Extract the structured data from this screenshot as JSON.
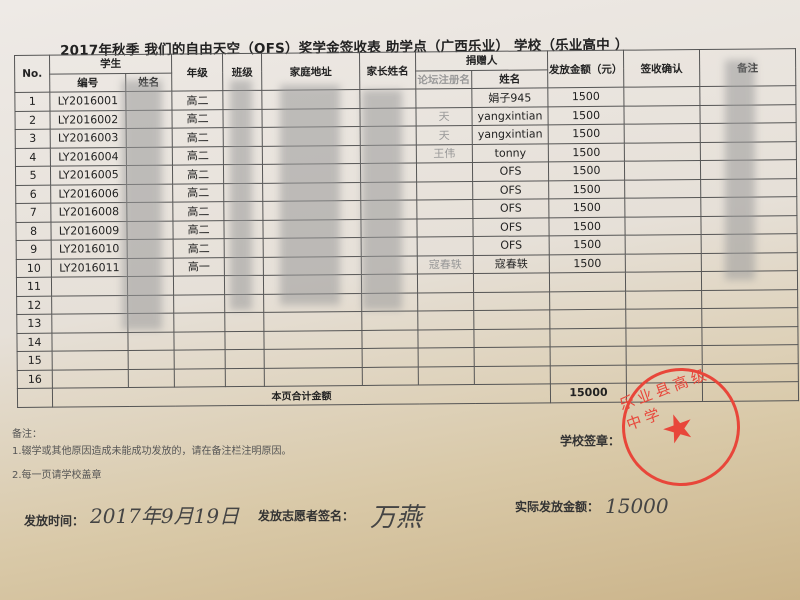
{
  "title": "2017年秋季 我们的自由天空（OFS）奖学金签收表    助学点（广西乐业） 学校（乐业高中 ）",
  "headers": {
    "no": "No.",
    "student": "学生",
    "student_id": "编号",
    "student_name": "姓名",
    "grade": "年级",
    "class": "班级",
    "address": "家庭地址",
    "parent": "家长姓名",
    "donor": "捐赠人",
    "donor_reg": "论坛注册名",
    "donor_name": "姓名",
    "amount": "发放金额（元）",
    "sign": "签收确认",
    "remark": "备注"
  },
  "rows": [
    {
      "no": "1",
      "id": "LY2016001",
      "grade": "高二",
      "donor_reg": "",
      "donor_name": "娟子945",
      "amount": "1500"
    },
    {
      "no": "2",
      "id": "LY2016002",
      "grade": "高二",
      "donor_reg": "天",
      "donor_name": "yangxintian",
      "amount": "1500"
    },
    {
      "no": "3",
      "id": "LY2016003",
      "grade": "高二",
      "donor_reg": "天",
      "donor_name": "yangxintian",
      "amount": "1500"
    },
    {
      "no": "4",
      "id": "LY2016004",
      "grade": "高二",
      "donor_reg": "王伟",
      "donor_name": "tonny",
      "amount": "1500"
    },
    {
      "no": "5",
      "id": "LY2016005",
      "grade": "高二",
      "donor_reg": "",
      "donor_name": "OFS",
      "amount": "1500"
    },
    {
      "no": "6",
      "id": "LY2016006",
      "grade": "高二",
      "donor_reg": "",
      "donor_name": "OFS",
      "amount": "1500"
    },
    {
      "no": "7",
      "id": "LY2016008",
      "grade": "高二",
      "donor_reg": "",
      "donor_name": "OFS",
      "amount": "1500"
    },
    {
      "no": "8",
      "id": "LY2016009",
      "grade": "高二",
      "donor_reg": "",
      "donor_name": "OFS",
      "amount": "1500"
    },
    {
      "no": "9",
      "id": "LY2016010",
      "grade": "高二",
      "donor_reg": "",
      "donor_name": "OFS",
      "amount": "1500"
    },
    {
      "no": "10",
      "id": "LY2016011",
      "grade": "高一",
      "donor_reg": "寇春轶",
      "donor_name": "寇春轶",
      "amount": "1500"
    },
    {
      "no": "11"
    },
    {
      "no": "12"
    },
    {
      "no": "13"
    },
    {
      "no": "14"
    },
    {
      "no": "15"
    },
    {
      "no": "16"
    }
  ],
  "total": {
    "label": "本页合计金额",
    "value": "15000"
  },
  "notes": {
    "heading": "备注：",
    "items": [
      "1.辍学或其他原因造成未能成功发放的，请在备注栏注明原因。",
      "2.每一页请学校盖章"
    ]
  },
  "footer": {
    "school_seal_label": "学校签章：",
    "date_label": "发放时间：",
    "date_value": "2017年9月19日",
    "volunteer_label": "发放志愿者签名：",
    "volunteer_value": "万燕",
    "actual_label": "实际发放金额：",
    "actual_value": "15000"
  },
  "stamp": {
    "text": "乐业县高级中学",
    "color": "#e8463a"
  }
}
